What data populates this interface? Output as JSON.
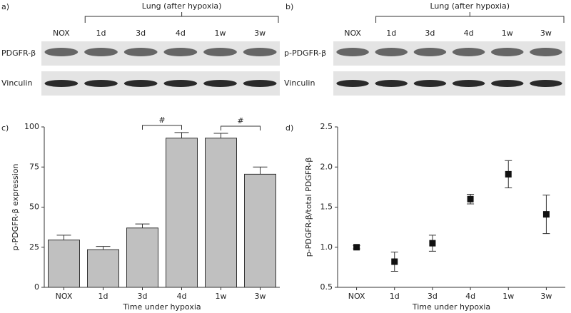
{
  "blots": [
    {
      "label": "a)",
      "header": "Lung (after hypoxia)",
      "lanes": [
        "NOX",
        "1d",
        "3d",
        "4d",
        "1w",
        "3w"
      ],
      "rows": [
        "PDGFR-β",
        "Vinculin"
      ]
    },
    {
      "label": "b)",
      "header": "Lung (after hypoxia)",
      "lanes": [
        "NOX",
        "1d",
        "3d",
        "4d",
        "1w",
        "3w"
      ],
      "rows": [
        "p-PDGFR-β",
        "Vinculin"
      ]
    }
  ],
  "chart_data": [
    {
      "type": "bar",
      "panel": "c)",
      "categories": [
        "NOX",
        "1d",
        "3d",
        "4d",
        "1w",
        "3w"
      ],
      "values": [
        29.5,
        23.5,
        37,
        93,
        93,
        70.5
      ],
      "errors": [
        3,
        2,
        2.5,
        3.5,
        3,
        4.5
      ],
      "color": "#c0c0c0",
      "ylabel": "p-PDGFR-β expression",
      "xlabel": "Time under hypoxia",
      "ylim": [
        0,
        100
      ],
      "yticks": [
        0,
        25,
        50,
        75,
        100
      ],
      "annotations": [
        "#",
        "#"
      ]
    },
    {
      "type": "scatter",
      "panel": "d)",
      "categories": [
        "NOX",
        "1d",
        "3d",
        "4d",
        "1w",
        "3w"
      ],
      "values": [
        1.0,
        0.82,
        1.05,
        1.6,
        1.91,
        1.41
      ],
      "errors": [
        0.02,
        0.12,
        0.1,
        0.06,
        0.17,
        0.24
      ],
      "color": "#111111",
      "ylabel": "p-PDGFR-β/total PDGFR-β",
      "xlabel": "Time under hypoxia",
      "ylim": [
        0.5,
        2.5
      ],
      "yticks": [
        {
          "value": 0.5,
          "label": "0.5"
        },
        {
          "value": 1.0,
          "label": "1.0"
        },
        1.5,
        {
          "value": 2.0,
          "label": "2.0"
        },
        2.5
      ]
    }
  ]
}
